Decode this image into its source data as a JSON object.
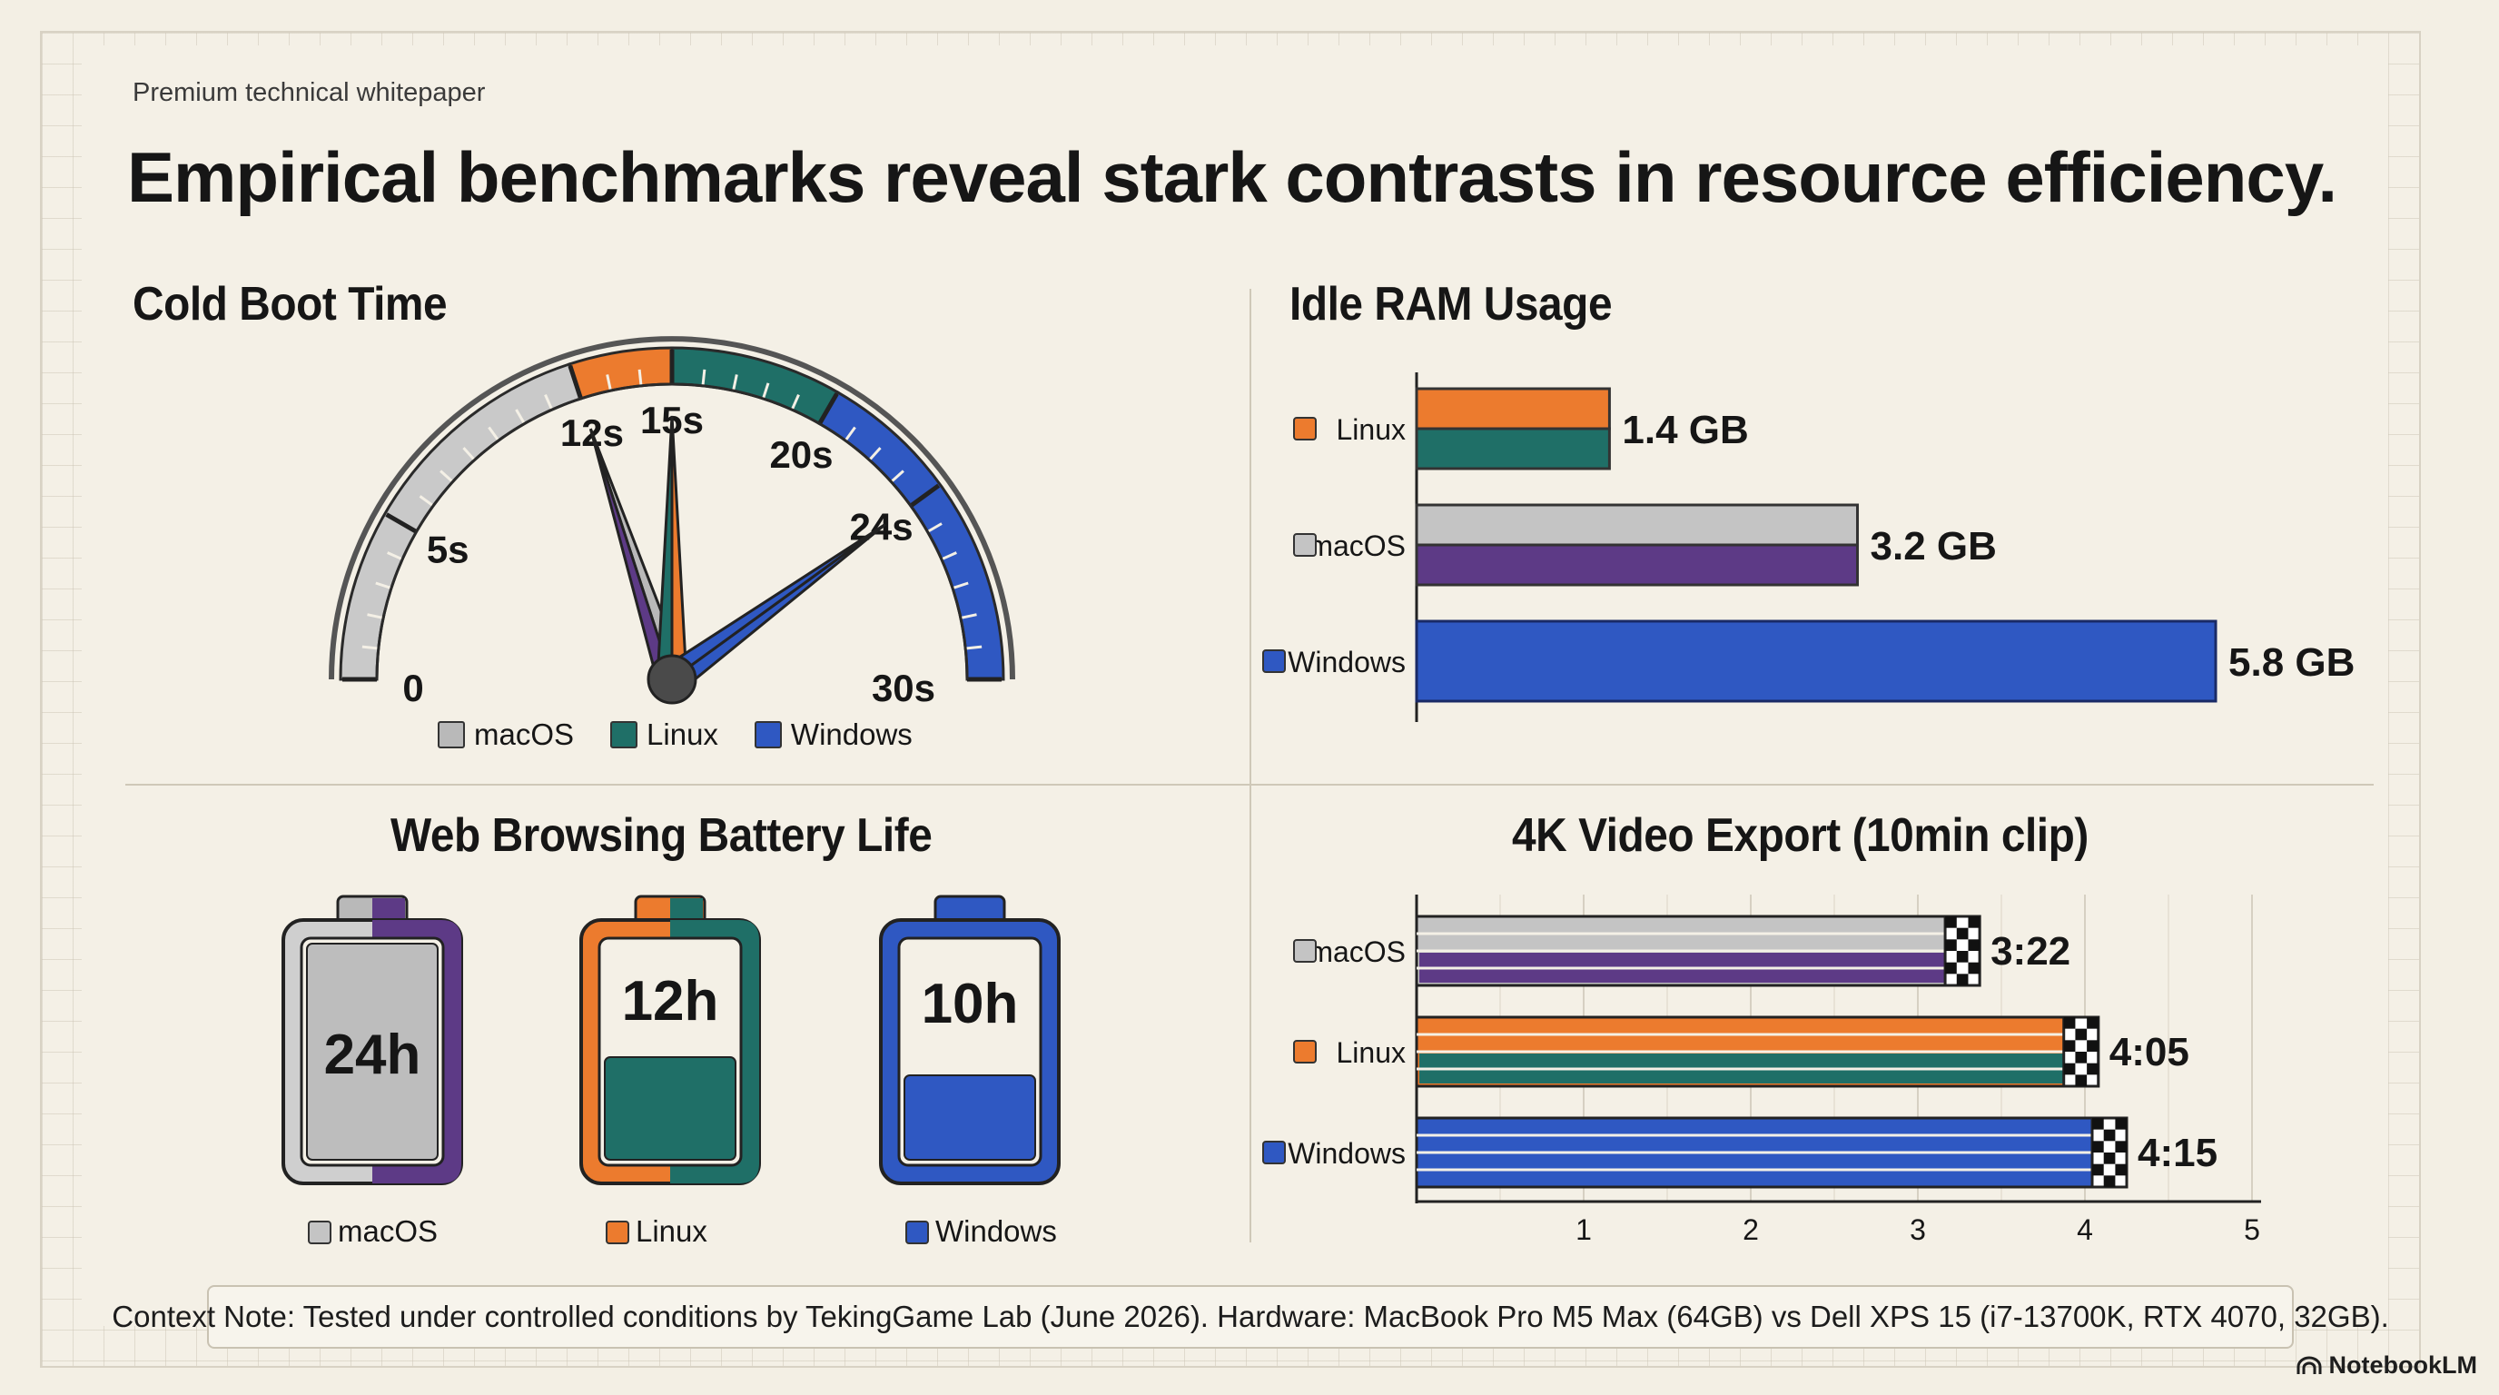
{
  "header": {
    "eyebrow": "Premium technical whitepaper",
    "title": "Empirical benchmarks reveal stark contrasts in resource efficiency."
  },
  "colors": {
    "macos": "#b9b9b9",
    "macos_alt": "#5d3a86",
    "linux": "#ec7b2e",
    "linux_alt": "#1f6f67",
    "windows": "#2f58c2",
    "ink": "#161616"
  },
  "chart_data": [
    {
      "type": "gauge",
      "title": "Cold Boot Time",
      "scale": {
        "min": 0,
        "max": 30,
        "unit": "s"
      },
      "tick_labels": [
        {
          "value": 0,
          "label": "0"
        },
        {
          "value": 5,
          "label": "5s"
        },
        {
          "value": 12,
          "label": "12s"
        },
        {
          "value": 15,
          "label": "15s"
        },
        {
          "value": 20,
          "label": "20s"
        },
        {
          "value": 24,
          "label": "24s"
        },
        {
          "value": 30,
          "label": "30s"
        }
      ],
      "series": [
        {
          "name": "macOS",
          "value": 12
        },
        {
          "name": "Linux",
          "value": 15
        },
        {
          "name": "Windows",
          "value": 24
        }
      ],
      "legend": [
        "macOS",
        "Linux",
        "Windows"
      ],
      "legend_position": "bottom"
    },
    {
      "type": "bar",
      "orientation": "horizontal",
      "title": "Idle RAM Usage",
      "unit": "GB",
      "categories": [
        "Linux",
        "macOS",
        "Windows"
      ],
      "values": [
        1.4,
        3.2,
        5.8
      ],
      "value_labels": [
        "1.4 GB",
        "3.2 GB",
        "5.8 GB"
      ],
      "xlim": [
        0,
        5.8
      ]
    },
    {
      "type": "bar",
      "title": "Web Browsing Battery Life",
      "unit": "h",
      "categories": [
        "macOS",
        "Linux",
        "Windows"
      ],
      "values": [
        24,
        12,
        10
      ],
      "value_labels": [
        "24h",
        "12h",
        "10h"
      ],
      "fill_fraction": [
        1.0,
        0.5,
        0.42
      ]
    },
    {
      "type": "bar",
      "orientation": "horizontal",
      "title": "4K Video Export (10min clip)",
      "categories": [
        "macOS",
        "Linux",
        "Windows"
      ],
      "values": [
        3.37,
        4.08,
        4.25
      ],
      "value_labels": [
        "3:22",
        "4:05",
        "4:15"
      ],
      "x_ticks": [
        1,
        2,
        3,
        4,
        5
      ],
      "xlim": [
        0,
        5
      ],
      "grid": true
    }
  ],
  "footer": {
    "note": "Context Note: Tested under controlled conditions by TekingGame Lab (June 2026). Hardware: MacBook Pro M5 Max (64GB) vs Dell XPS 15 (i7-13700K, RTX 4070, 32GB).",
    "brand": "NotebookLM"
  }
}
